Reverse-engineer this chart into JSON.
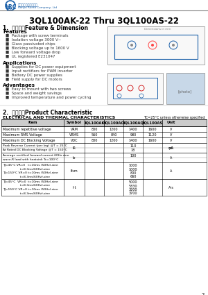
{
  "title": "3QL100AK-22 Thru 3QL100AS-22",
  "section1": "1.  外型尺寸Feature & Dimension",
  "section2": "2.  产品特性Product Characteristic",
  "features_title": "Features",
  "features": [
    "Package with screw terminals",
    "Isolation voltage 3000 V~",
    "Glass passivated chips",
    "Blocking voltage up to 1600 V",
    "Low forward voltage drop",
    "UL registered E231047"
  ],
  "applications_title": "Applications",
  "applications": [
    "Supplies for DC power equipment",
    "Input rectifiers for PWM inverter",
    "Battery DC power supplies",
    "Field supply for DC motors"
  ],
  "advantages_title": "Advantages",
  "advantages": [
    "Easy to mount with two screws",
    "Space and weight savings",
    "Improved temperature and power cycling"
  ],
  "table_title": "ELECTRICAL AND THERMAL CHARACTERISTICS",
  "table_note": "TC=25°C unless otherwise specified",
  "col_headers": [
    "Item",
    "Symbol",
    "3QL100AK",
    "3QL100AO",
    "3QL100AQ",
    "3QL100AS",
    "Unit"
  ],
  "rows": [
    {
      "item": "Maximum repetitive voltage",
      "symbol": "VRM",
      "vals": [
        "800",
        "1200",
        "1400",
        "1600"
      ],
      "unit": "V",
      "merged": false
    },
    {
      "item": "Maximum RMS Voltage",
      "symbol": "VRMS",
      "vals": [
        "560",
        "840",
        "980",
        "1120"
      ],
      "unit": "V",
      "merged": false
    },
    {
      "item": "Maximum DC Blocking Voltage",
      "symbol": "VDC",
      "vals": [
        "800",
        "1200",
        "1400",
        "1600"
      ],
      "unit": "V",
      "merged": false
    },
    {
      "item": "Peak Reverse Current (per leg) @T = 25°C",
      "symbol": "IR",
      "vals": [
        "",
        "",
        "110",
        "",
        ""
      ],
      "unit": "μA",
      "merged": true,
      "row2_item": "At Rated DC Blocking Voltage @T = 150°C",
      "row2_vals": [
        "",
        "",
        "18",
        "",
        ""
      ],
      "row2_unit": "mA"
    },
    {
      "item": "Average rectified forward current 60Hz sine",
      "symbol": "Io",
      "vals": [
        "",
        "",
        "100",
        "",
        ""
      ],
      "unit": "A",
      "merged": true,
      "row2_item": "wave,R load with heatsink Tc=100°C"
    },
    {
      "item": "TJ=45°C VR=0    t=10ms (50Hz),sine",
      "symbol": "Ifsm",
      "vals": [
        "",
        "",
        "1000",
        "",
        ""
      ],
      "unit": "A",
      "merged": true,
      "sub_items": [
        "                   t=8.3ms(60Hz),sine",
        "TJ=150°C  VR=0  t=10ms (50Hz),sine",
        "                   t=8.3ms(60Hz),sine"
      ],
      "sub_vals": [
        "1000",
        "800",
        "660"
      ]
    },
    {
      "item": "TJ=45°C  VR=0  t=10ms (50Hz),sine",
      "symbol": "I²t",
      "vals": [
        "",
        "",
        "5000",
        "",
        ""
      ],
      "unit": "A²s",
      "merged": true,
      "sub_items": [
        "                   t=8.3ms(60Hz),sine",
        "TJ=150°C  VR=0  t=10ms (50Hz),sine",
        "                   t=8.3ms(60Hz),sine"
      ],
      "sub_vals": [
        "5830",
        "3200",
        "3700"
      ]
    }
  ],
  "logo_text": "LRC",
  "company_cn": "天津人和电子有限公司",
  "company_en": "tianjin Runto Company, Ltd",
  "bg_color": "#ffffff",
  "text_color": "#000000",
  "blue_color": "#1a5fa8",
  "table_header_bg": "#d0d0d0",
  "table_line_color": "#000000"
}
